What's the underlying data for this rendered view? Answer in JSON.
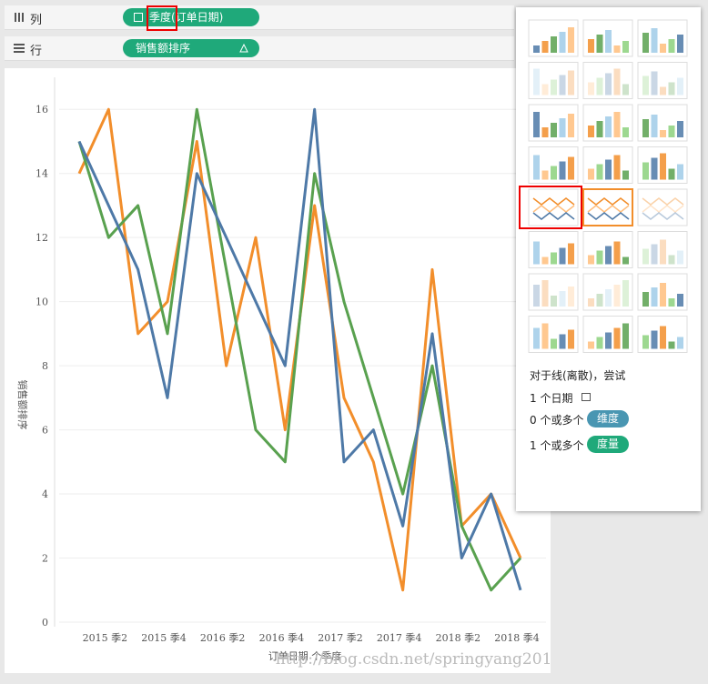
{
  "shelves": {
    "columns": {
      "label": "列",
      "pill": "季度(订单日期)"
    },
    "rows": {
      "label": "行",
      "pill": "销售额排序"
    }
  },
  "chart_data": {
    "type": "line",
    "categories": [
      null,
      "2015 季2",
      null,
      "2015 季4",
      null,
      "2016 季2",
      null,
      "2016 季4",
      null,
      "2017 季2",
      null,
      "2017 季4",
      null,
      "2018 季2",
      null,
      "2018 季4"
    ],
    "series": [
      {
        "color": "#f28e2b",
        "values": [
          14,
          16,
          9,
          10,
          15,
          8,
          12,
          6,
          13,
          7,
          5,
          1,
          11,
          3,
          4,
          2
        ]
      },
      {
        "color": "#59a14f",
        "values": [
          15,
          12,
          13,
          9,
          16,
          11,
          6,
          5,
          14,
          10,
          7,
          4,
          8,
          3,
          1,
          2
        ]
      },
      {
        "color": "#4e79a7",
        "values": [
          15,
          13,
          11,
          7,
          14,
          12,
          10,
          8,
          16,
          5,
          6,
          3,
          9,
          2,
          4,
          1
        ]
      }
    ],
    "ylim": [
      0,
      17
    ],
    "yticks": [
      0,
      2,
      4,
      6,
      8,
      10,
      12,
      14,
      16
    ],
    "grid": true,
    "y_label": "销售额排序",
    "x_label": "订单日期 个季度"
  },
  "show_me": {
    "hint": "对于线(离散)，尝试",
    "req1": "1 个日期",
    "req2": "0 个或多个",
    "dim": "维度",
    "req3": "1 个或多个",
    "measure": "度量"
  },
  "watermark": "http://blog.csdn.net/springyang2013"
}
